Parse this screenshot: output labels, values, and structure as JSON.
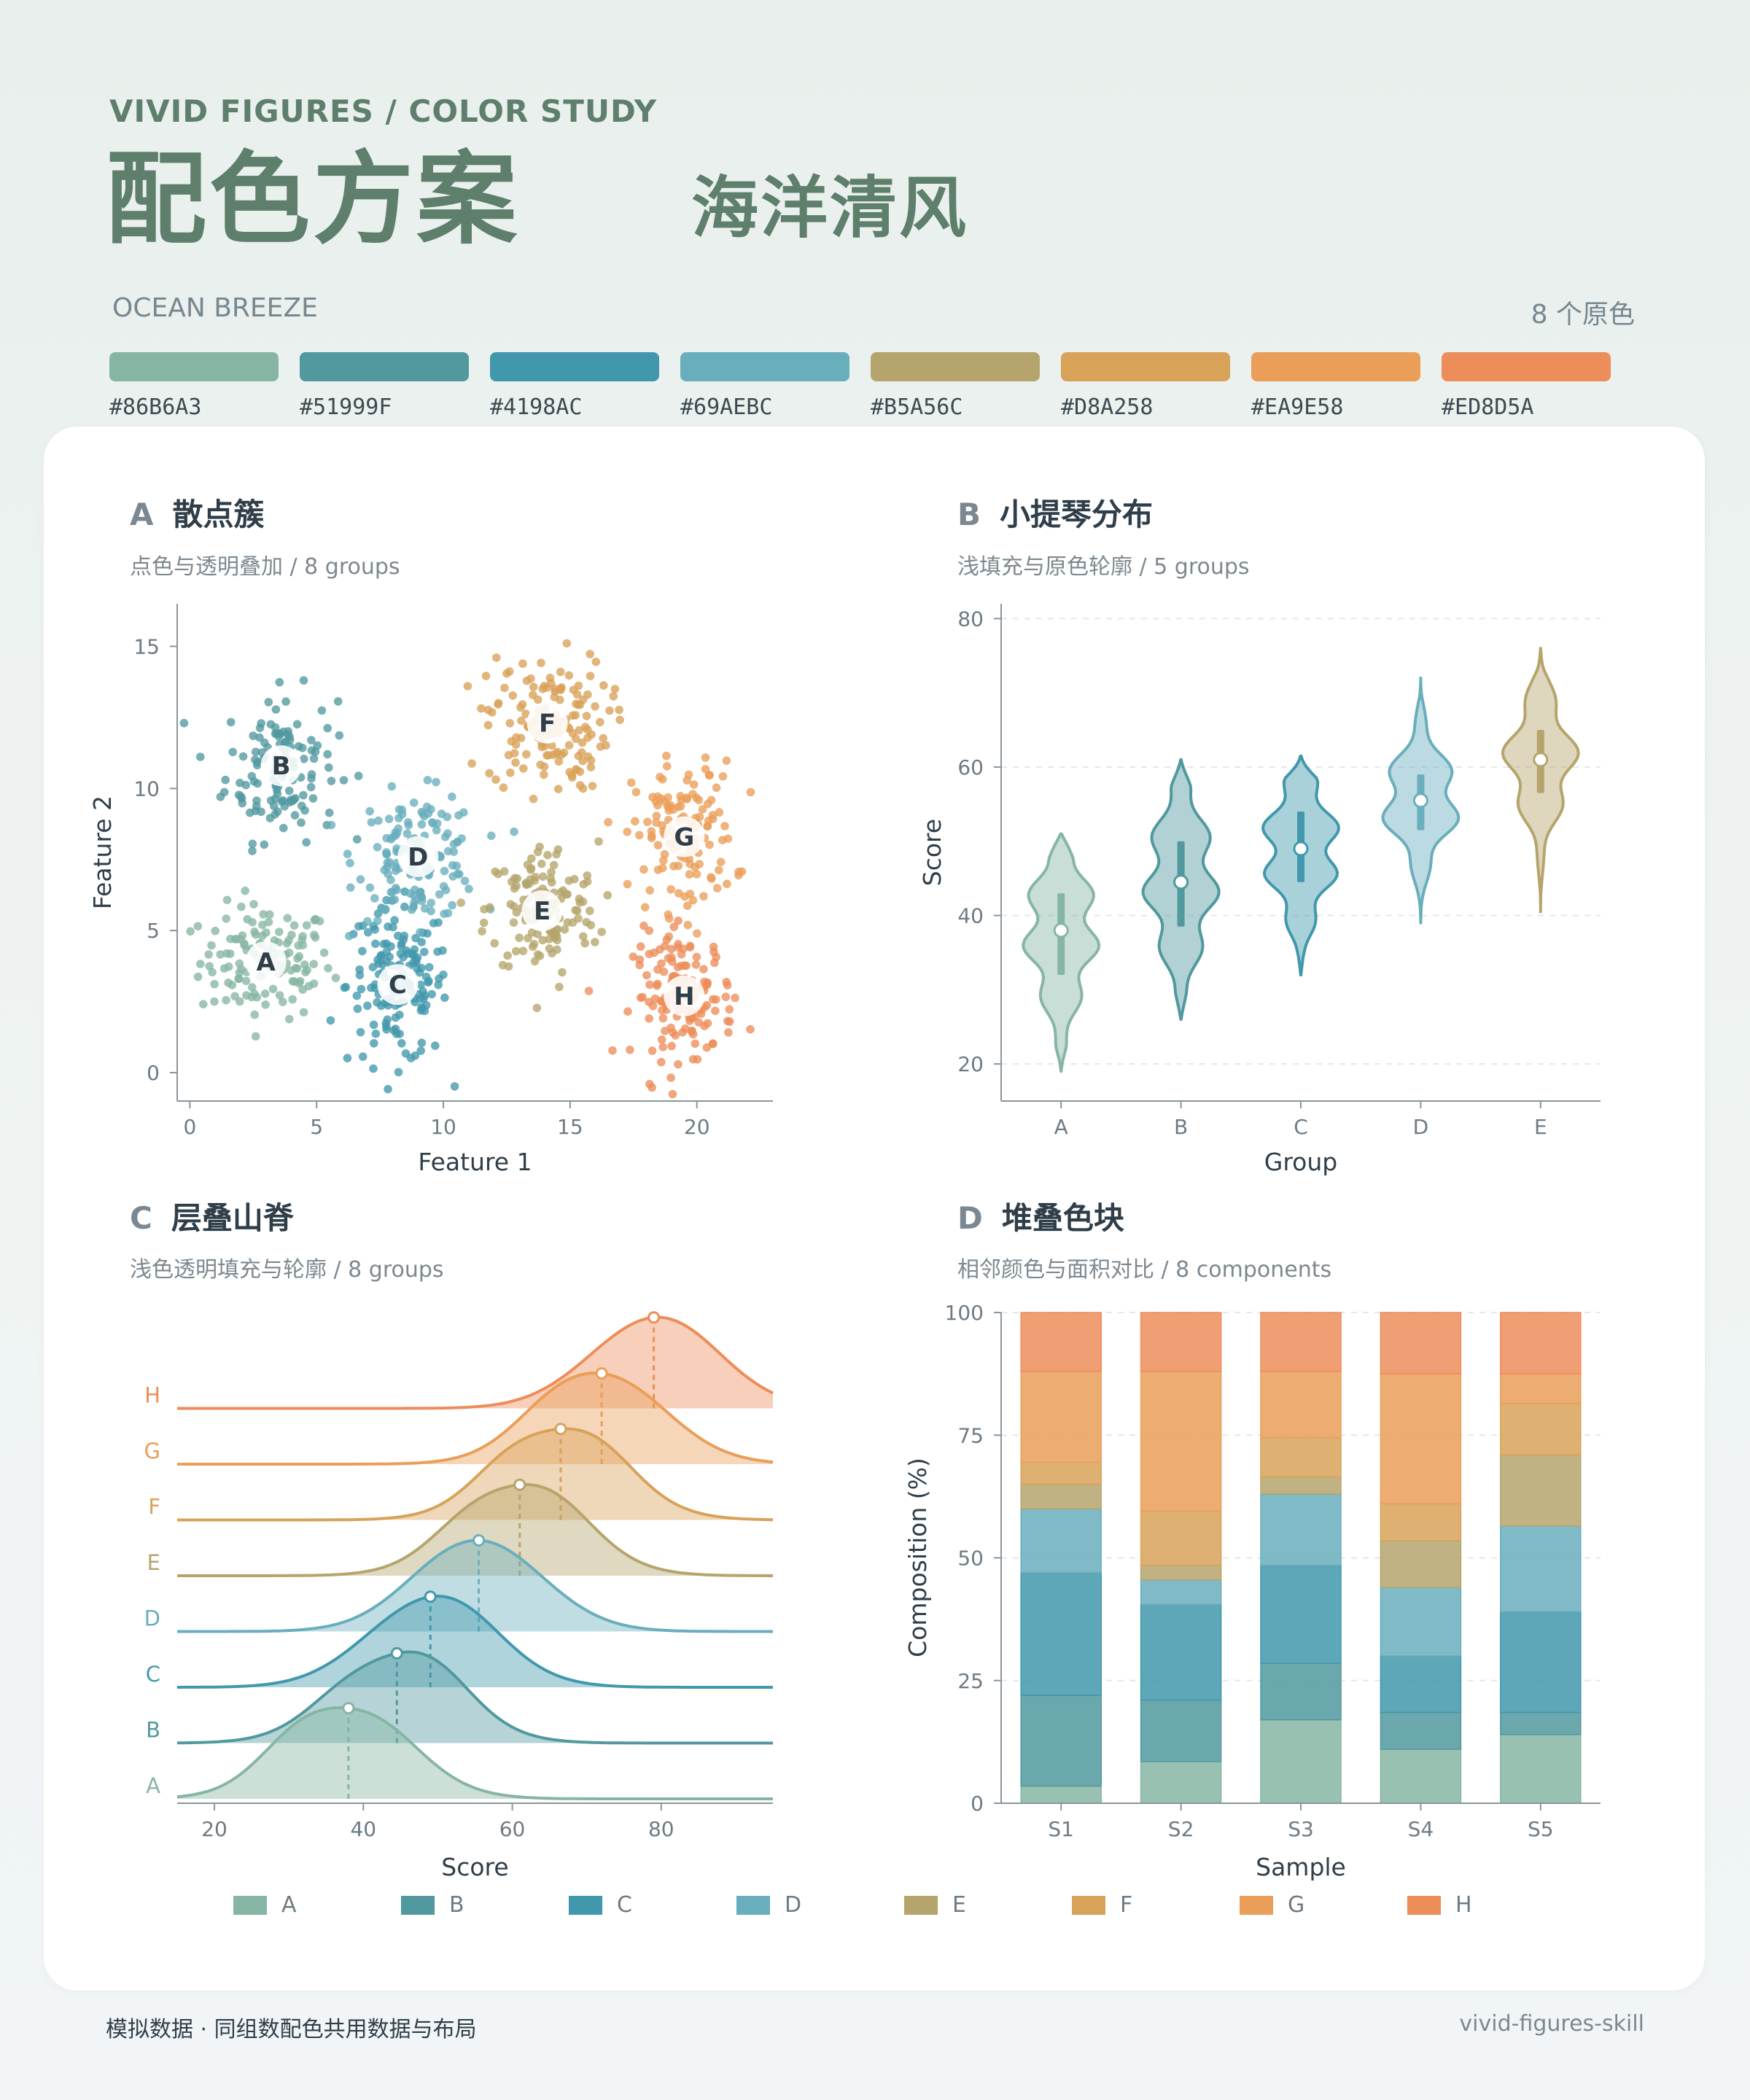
{
  "header": {
    "kicker": "VIVID FIGURES  /  COLOR STUDY",
    "title": "配色方案",
    "subtitle": "海洋清风",
    "english": "OCEAN BREEZE",
    "count": "8 个原色"
  },
  "palette": [
    {
      "name": "A",
      "hex": "#86B6A3"
    },
    {
      "name": "B",
      "hex": "#51999F"
    },
    {
      "name": "C",
      "hex": "#4198AC"
    },
    {
      "name": "D",
      "hex": "#69AEBC"
    },
    {
      "name": "E",
      "hex": "#B5A56C"
    },
    {
      "name": "F",
      "hex": "#D8A258"
    },
    {
      "name": "G",
      "hex": "#EA9E58"
    },
    {
      "name": "H",
      "hex": "#ED8D5A"
    }
  ],
  "panels": {
    "a": {
      "letter": "A",
      "title": "散点簇",
      "subtitle": "点色与透明叠加 / 8 groups"
    },
    "b": {
      "letter": "B",
      "title": "小提琴分布",
      "subtitle": "浅填充与原色轮廓 / 5 groups"
    },
    "c": {
      "letter": "C",
      "title": "层叠山脊",
      "subtitle": "浅色透明填充与轮廓 / 8 groups"
    },
    "d": {
      "letter": "D",
      "title": "堆叠色块",
      "subtitle": "相邻颜色与面积对比 / 8 components"
    }
  },
  "legend": [
    "A",
    "B",
    "C",
    "D",
    "E",
    "F",
    "G",
    "H"
  ],
  "footer": {
    "left": "模拟数据 · 同组数配色共用数据与布局",
    "right": "vivid-figures-skill"
  },
  "chart_data": [
    {
      "type": "scatter",
      "xlabel": "Feature 1",
      "ylabel": "Feature 2",
      "xlim": [
        -0.5,
        23
      ],
      "ylim": [
        -1,
        16.5
      ],
      "xticks": [
        0,
        5,
        10,
        15,
        20
      ],
      "yticks": [
        0,
        5,
        10,
        15
      ],
      "clusters": [
        {
          "name": "A",
          "cx": 3.0,
          "cy": 3.9,
          "sx": 1.3,
          "sy": 1.0,
          "n": 130
        },
        {
          "name": "B",
          "cx": 3.6,
          "cy": 10.8,
          "sx": 1.1,
          "sy": 1.3,
          "n": 130
        },
        {
          "name": "C",
          "cx": 8.2,
          "cy": 3.1,
          "sx": 1.0,
          "sy": 1.4,
          "n": 160
        },
        {
          "name": "D",
          "cx": 9.0,
          "cy": 7.6,
          "sx": 1.2,
          "sy": 1.1,
          "n": 140
        },
        {
          "name": "E",
          "cx": 13.9,
          "cy": 5.7,
          "sx": 1.1,
          "sy": 1.2,
          "n": 140
        },
        {
          "name": "F",
          "cx": 14.1,
          "cy": 12.3,
          "sx": 1.2,
          "sy": 1.2,
          "n": 150
        },
        {
          "name": "G",
          "cx": 19.5,
          "cy": 8.3,
          "sx": 1.0,
          "sy": 1.3,
          "n": 140
        },
        {
          "name": "H",
          "cx": 19.5,
          "cy": 2.7,
          "sx": 1.0,
          "sy": 1.1,
          "n": 150
        }
      ]
    },
    {
      "type": "violin",
      "xlabel": "Group",
      "ylabel": "Score",
      "ylim": [
        15,
        82
      ],
      "yticks": [
        20,
        40,
        60,
        80
      ],
      "categories": [
        "A",
        "B",
        "C",
        "D",
        "E"
      ],
      "medians": [
        38,
        44.5,
        49,
        55.5,
        61
      ],
      "q1": [
        32,
        38.5,
        44.5,
        51.5,
        56.5
      ],
      "q3": [
        43,
        50,
        54,
        59,
        65
      ],
      "min": [
        19,
        26,
        32,
        39,
        40.5
      ],
      "max": [
        51,
        61,
        61.5,
        72,
        76
      ]
    },
    {
      "type": "ridgeline",
      "xlabel": "Score",
      "xlim": [
        15,
        95
      ],
      "xticks": [
        20,
        40,
        60,
        80
      ],
      "series": [
        {
          "name": "A",
          "median": 38
        },
        {
          "name": "B",
          "median": 44.5
        },
        {
          "name": "C",
          "median": 49
        },
        {
          "name": "D",
          "median": 55.5
        },
        {
          "name": "E",
          "median": 61
        },
        {
          "name": "F",
          "median": 66.5
        },
        {
          "name": "G",
          "median": 72
        },
        {
          "name": "H",
          "median": 79
        }
      ]
    },
    {
      "type": "bar",
      "stacked": true,
      "xlabel": "Sample",
      "ylabel": "Composition (%)",
      "ylim": [
        0,
        100
      ],
      "yticks": [
        0,
        25,
        50,
        75,
        100
      ],
      "categories": [
        "S1",
        "S2",
        "S3",
        "S4",
        "S5"
      ],
      "series": [
        {
          "name": "A",
          "values": [
            3.5,
            8.5,
            17,
            11,
            14
          ]
        },
        {
          "name": "B",
          "values": [
            18.5,
            12.5,
            11.5,
            7.5,
            4.5
          ]
        },
        {
          "name": "C",
          "values": [
            25,
            19.5,
            20,
            11.5,
            20.5
          ]
        },
        {
          "name": "D",
          "values": [
            13,
            5,
            14.5,
            14,
            17.5
          ]
        },
        {
          "name": "E",
          "values": [
            5,
            3,
            3.5,
            9.5,
            14.5
          ]
        },
        {
          "name": "F",
          "values": [
            4.5,
            11,
            8,
            7.5,
            10.5
          ]
        },
        {
          "name": "G",
          "values": [
            18.5,
            28.5,
            13.5,
            26.5,
            6
          ]
        },
        {
          "name": "H",
          "values": [
            12,
            12,
            12,
            12.5,
            12.5
          ]
        }
      ]
    }
  ]
}
